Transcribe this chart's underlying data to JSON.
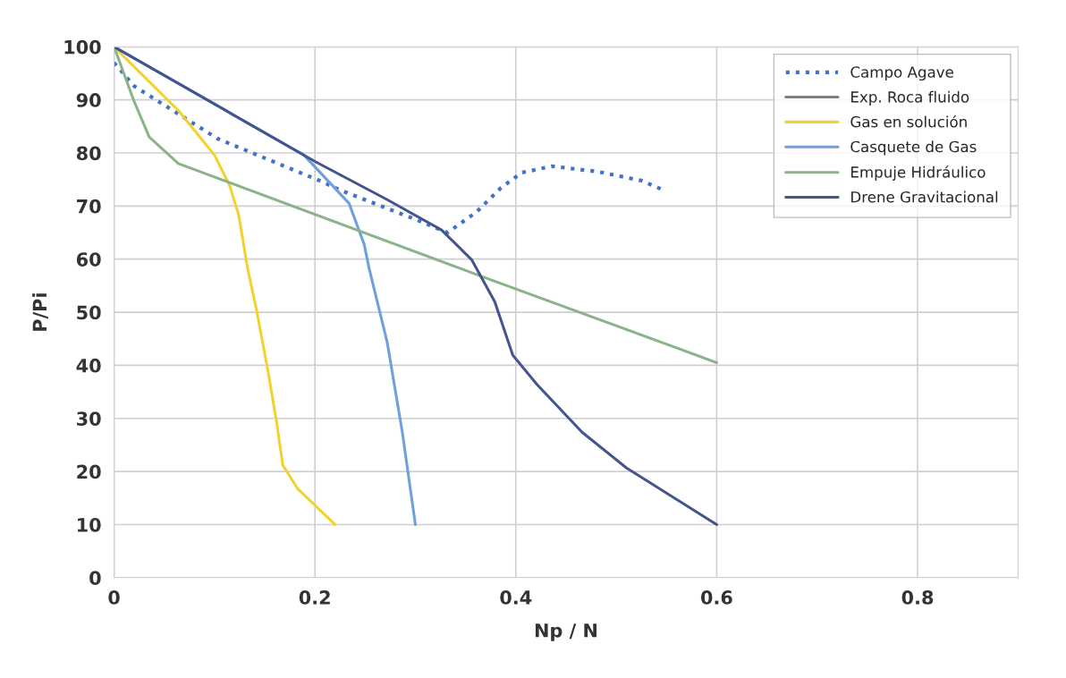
{
  "chart_data": {
    "type": "line",
    "xlabel": "Np / N",
    "ylabel": "P/Pi",
    "xlim": [
      0,
      0.9
    ],
    "ylim": [
      0,
      100
    ],
    "xticks": [
      0,
      0.2,
      0.4,
      0.6,
      0.8
    ],
    "yticks": [
      0,
      10,
      20,
      30,
      40,
      50,
      60,
      70,
      80,
      90,
      100
    ],
    "grid": true,
    "legend": "top right",
    "marker": "none",
    "series": [
      {
        "name": "Campo Agave",
        "color": "#4472c4",
        "line_style": "dotted",
        "x": [
          0,
          0.02,
          0.103,
          0.207,
          0.225,
          0.296,
          0.332,
          0.361,
          0.385,
          0.406,
          0.436,
          0.481,
          0.525,
          0.546
        ],
        "values": [
          97,
          92.6,
          82.7,
          74.6,
          73,
          67.8,
          65,
          68.9,
          73.4,
          76.3,
          77.5,
          76.5,
          74.8,
          73.1
        ]
      },
      {
        "name": "Exp. Roca fluido",
        "color": "#808080",
        "line_style": "solid"
      },
      {
        "name": "Gas en solución",
        "color": "#f2d230",
        "line_style": "solid",
        "x": [
          0,
          0.064,
          0.1,
          0.115,
          0.124,
          0.133,
          0.142,
          0.153,
          0.162,
          0.168,
          0.183,
          0.22
        ],
        "values": [
          100,
          88,
          79.6,
          73.9,
          68.4,
          58.2,
          50.3,
          39.2,
          29.1,
          21.2,
          16.7,
          10
        ]
      },
      {
        "name": "Casquete de Gas",
        "color": "#6f9fdc",
        "line_style": "solid",
        "x": [
          0,
          0.189,
          0.234,
          0.249,
          0.254,
          0.272,
          0.287,
          0.3
        ],
        "values": [
          100,
          79.6,
          70.5,
          62.8,
          58.2,
          44.3,
          27.4,
          10
        ]
      },
      {
        "name": "Empuje Hidráulico",
        "color": "#8cb38a",
        "line_style": "solid",
        "x": [
          0,
          0.02,
          0.035,
          0.064,
          0.368,
          0.6
        ],
        "values": [
          100,
          89.7,
          83,
          78,
          56.6,
          40.5
        ]
      },
      {
        "name": "Drene Gravitacional",
        "color": "#44548f",
        "line_style": "solid",
        "x": [
          0,
          0.2,
          0.272,
          0.326,
          0.356,
          0.379,
          0.397,
          0.421,
          0.466,
          0.51,
          0.6
        ],
        "values": [
          100,
          78.4,
          71.2,
          65.5,
          59.9,
          52,
          41.9,
          36.4,
          27.4,
          20.7,
          10
        ]
      }
    ]
  }
}
